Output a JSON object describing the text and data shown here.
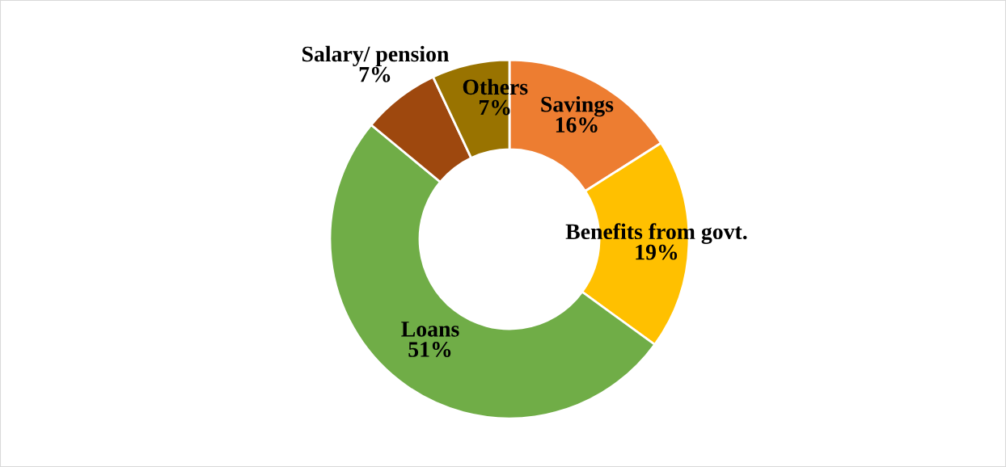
{
  "chart_data": {
    "type": "donut",
    "categories": [
      "Savings",
      "Benefits from govt.",
      "Loans",
      "Salary/ pension",
      "Others"
    ],
    "values": [
      16,
      19,
      51,
      7,
      7
    ],
    "colors": [
      "#ed7d31",
      "#ffc000",
      "#70ad47",
      "#9e480e",
      "#997300"
    ],
    "value_labels": [
      "16%",
      "19%",
      "51%",
      "7%",
      "7%"
    ]
  }
}
